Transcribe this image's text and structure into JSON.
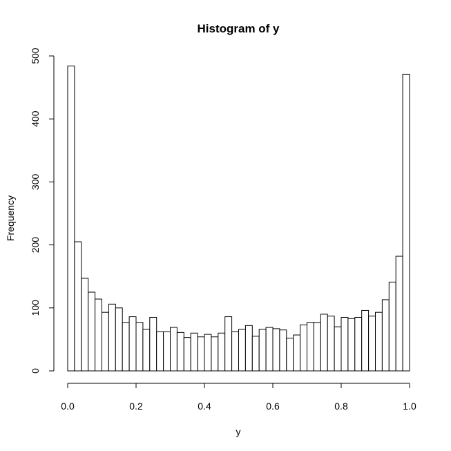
{
  "chart_data": {
    "type": "bar",
    "title": "Histogram of y",
    "xlabel": "y",
    "ylabel": "Frequency",
    "xlim": [
      0,
      1
    ],
    "ylim": [
      0,
      500
    ],
    "bin_width": 0.02,
    "x_ticks": [
      0.0,
      0.2,
      0.4,
      0.6,
      0.8,
      1.0
    ],
    "x_tick_labels": [
      "0.0",
      "0.2",
      "0.4",
      "0.6",
      "0.8",
      "1.0"
    ],
    "y_ticks": [
      0,
      100,
      200,
      300,
      400,
      500
    ],
    "y_tick_labels": [
      "0",
      "100",
      "200",
      "300",
      "400",
      "500"
    ],
    "bin_starts": [
      0.0,
      0.02,
      0.04,
      0.06,
      0.08,
      0.1,
      0.12,
      0.14,
      0.16,
      0.18,
      0.2,
      0.22,
      0.24,
      0.26,
      0.28,
      0.3,
      0.32,
      0.34,
      0.36,
      0.38,
      0.4,
      0.42,
      0.44,
      0.46,
      0.48,
      0.5,
      0.52,
      0.54,
      0.56,
      0.58,
      0.6,
      0.62,
      0.64,
      0.66,
      0.68,
      0.7,
      0.72,
      0.74,
      0.76,
      0.78,
      0.8,
      0.82,
      0.84,
      0.86,
      0.88,
      0.9,
      0.92,
      0.94,
      0.96,
      0.98
    ],
    "values": [
      484,
      205,
      147,
      125,
      114,
      93,
      106,
      100,
      77,
      86,
      77,
      66,
      85,
      62,
      62,
      69,
      61,
      53,
      60,
      54,
      58,
      54,
      60,
      86,
      62,
      66,
      72,
      55,
      66,
      69,
      67,
      65,
      52,
      57,
      73,
      77,
      77,
      90,
      87,
      70,
      85,
      83,
      85,
      96,
      87,
      93,
      113,
      141,
      182,
      471
    ],
    "grid": false,
    "legend": "none",
    "colors": {
      "bar_fill": "#ffffff",
      "bar_stroke": "#000000"
    }
  }
}
